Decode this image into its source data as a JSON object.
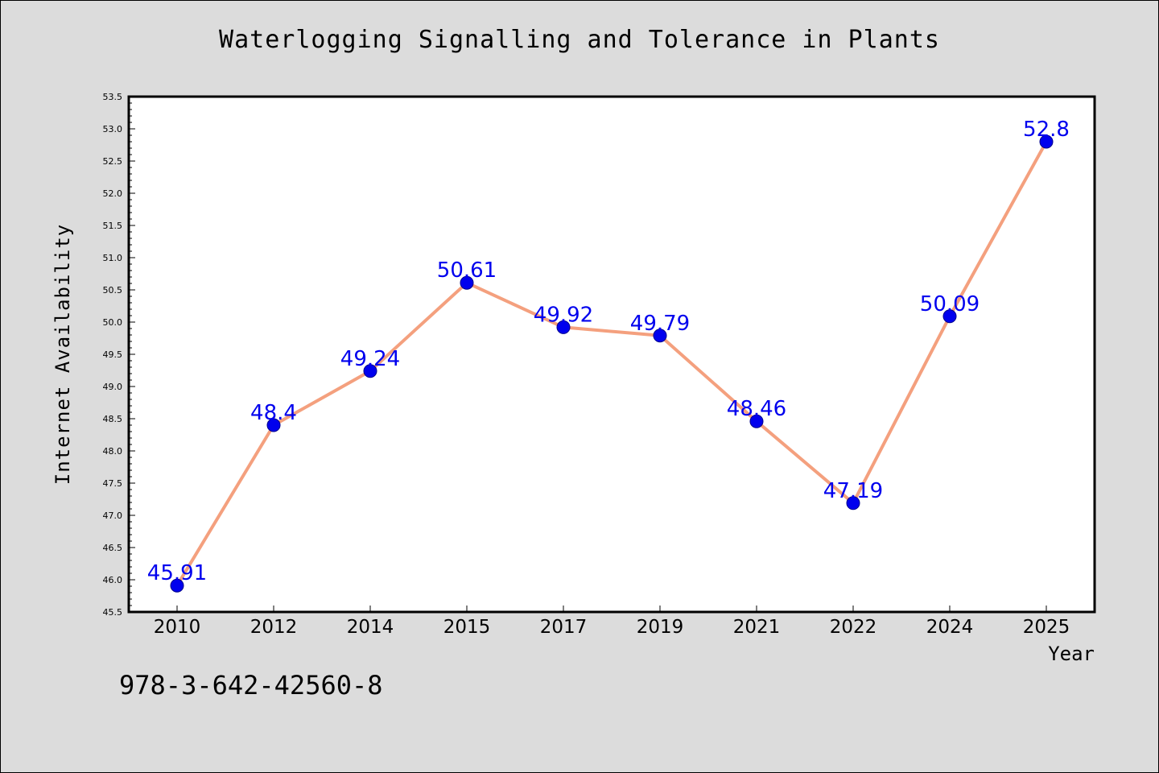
{
  "chart_data": {
    "type": "line",
    "title": "Waterlogging Signalling and Tolerance in Plants",
    "xlabel": "Year",
    "ylabel": "Internet Availability",
    "categories": [
      "2010",
      "2012",
      "2014",
      "2015",
      "2017",
      "2019",
      "2021",
      "2022",
      "2024",
      "2025"
    ],
    "series": [
      {
        "values": [
          45.91,
          48.4,
          49.24,
          50.61,
          49.92,
          49.79,
          48.46,
          47.19,
          50.09,
          52.8
        ],
        "labels": [
          "45.91",
          "48.4",
          "49.24",
          "50.61",
          "49.92",
          "49.79",
          "48.46",
          "47.19",
          "50.09",
          "52.8"
        ],
        "line_color": "#f4a07e",
        "marker_color": "#0000ee",
        "label_color": "#0000ee"
      }
    ],
    "ylim": [
      45.5,
      53.5
    ],
    "yticks": [
      "45.5",
      "46.0",
      "46.5",
      "47.0",
      "47.5",
      "48.0",
      "48.5",
      "49.0",
      "49.5",
      "50.0",
      "50.5",
      "51.0",
      "51.5",
      "52.0",
      "52.5",
      "53.0",
      "53.5"
    ],
    "grid": false,
    "legend": "none"
  },
  "footer_text": "978-3-642-42560-8",
  "colors": {
    "background": "#dcdcdc",
    "plot_background": "#ffffff",
    "axis": "#000000"
  }
}
